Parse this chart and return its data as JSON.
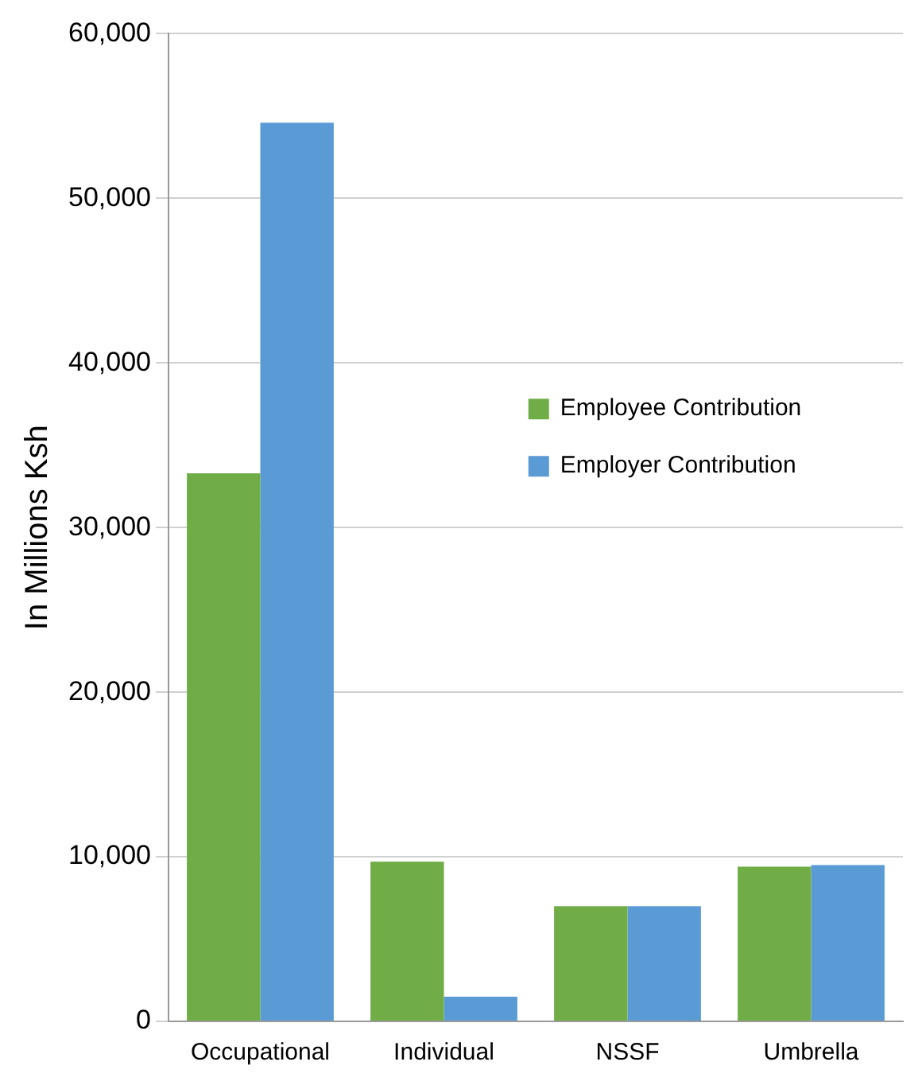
{
  "chart_data": {
    "type": "bar",
    "ylabel": "In Millions Ksh",
    "categories": [
      "Occupational",
      "Individual",
      "NSSF",
      "Umbrella"
    ],
    "series": [
      {
        "name": "Employee Contribution",
        "color": "#70ad47",
        "values": [
          33300,
          9700,
          7000,
          9400
        ]
      },
      {
        "name": "Employer Contribution",
        "color": "#5b9bd5",
        "values": [
          54600,
          1500,
          7000,
          9500
        ]
      }
    ],
    "ylim": [
      0,
      60000
    ],
    "yticks": [
      0,
      {
        "value": 10000,
        "label": "10,000"
      },
      {
        "value": 20000,
        "label": "20,000"
      },
      {
        "value": 30000,
        "label": "30,000"
      },
      {
        "value": 40000,
        "label": "40,000"
      },
      {
        "value": 50000,
        "label": "50,000"
      },
      {
        "value": 60000,
        "label": "60,000"
      }
    ],
    "grid": "y",
    "legend": "right"
  }
}
